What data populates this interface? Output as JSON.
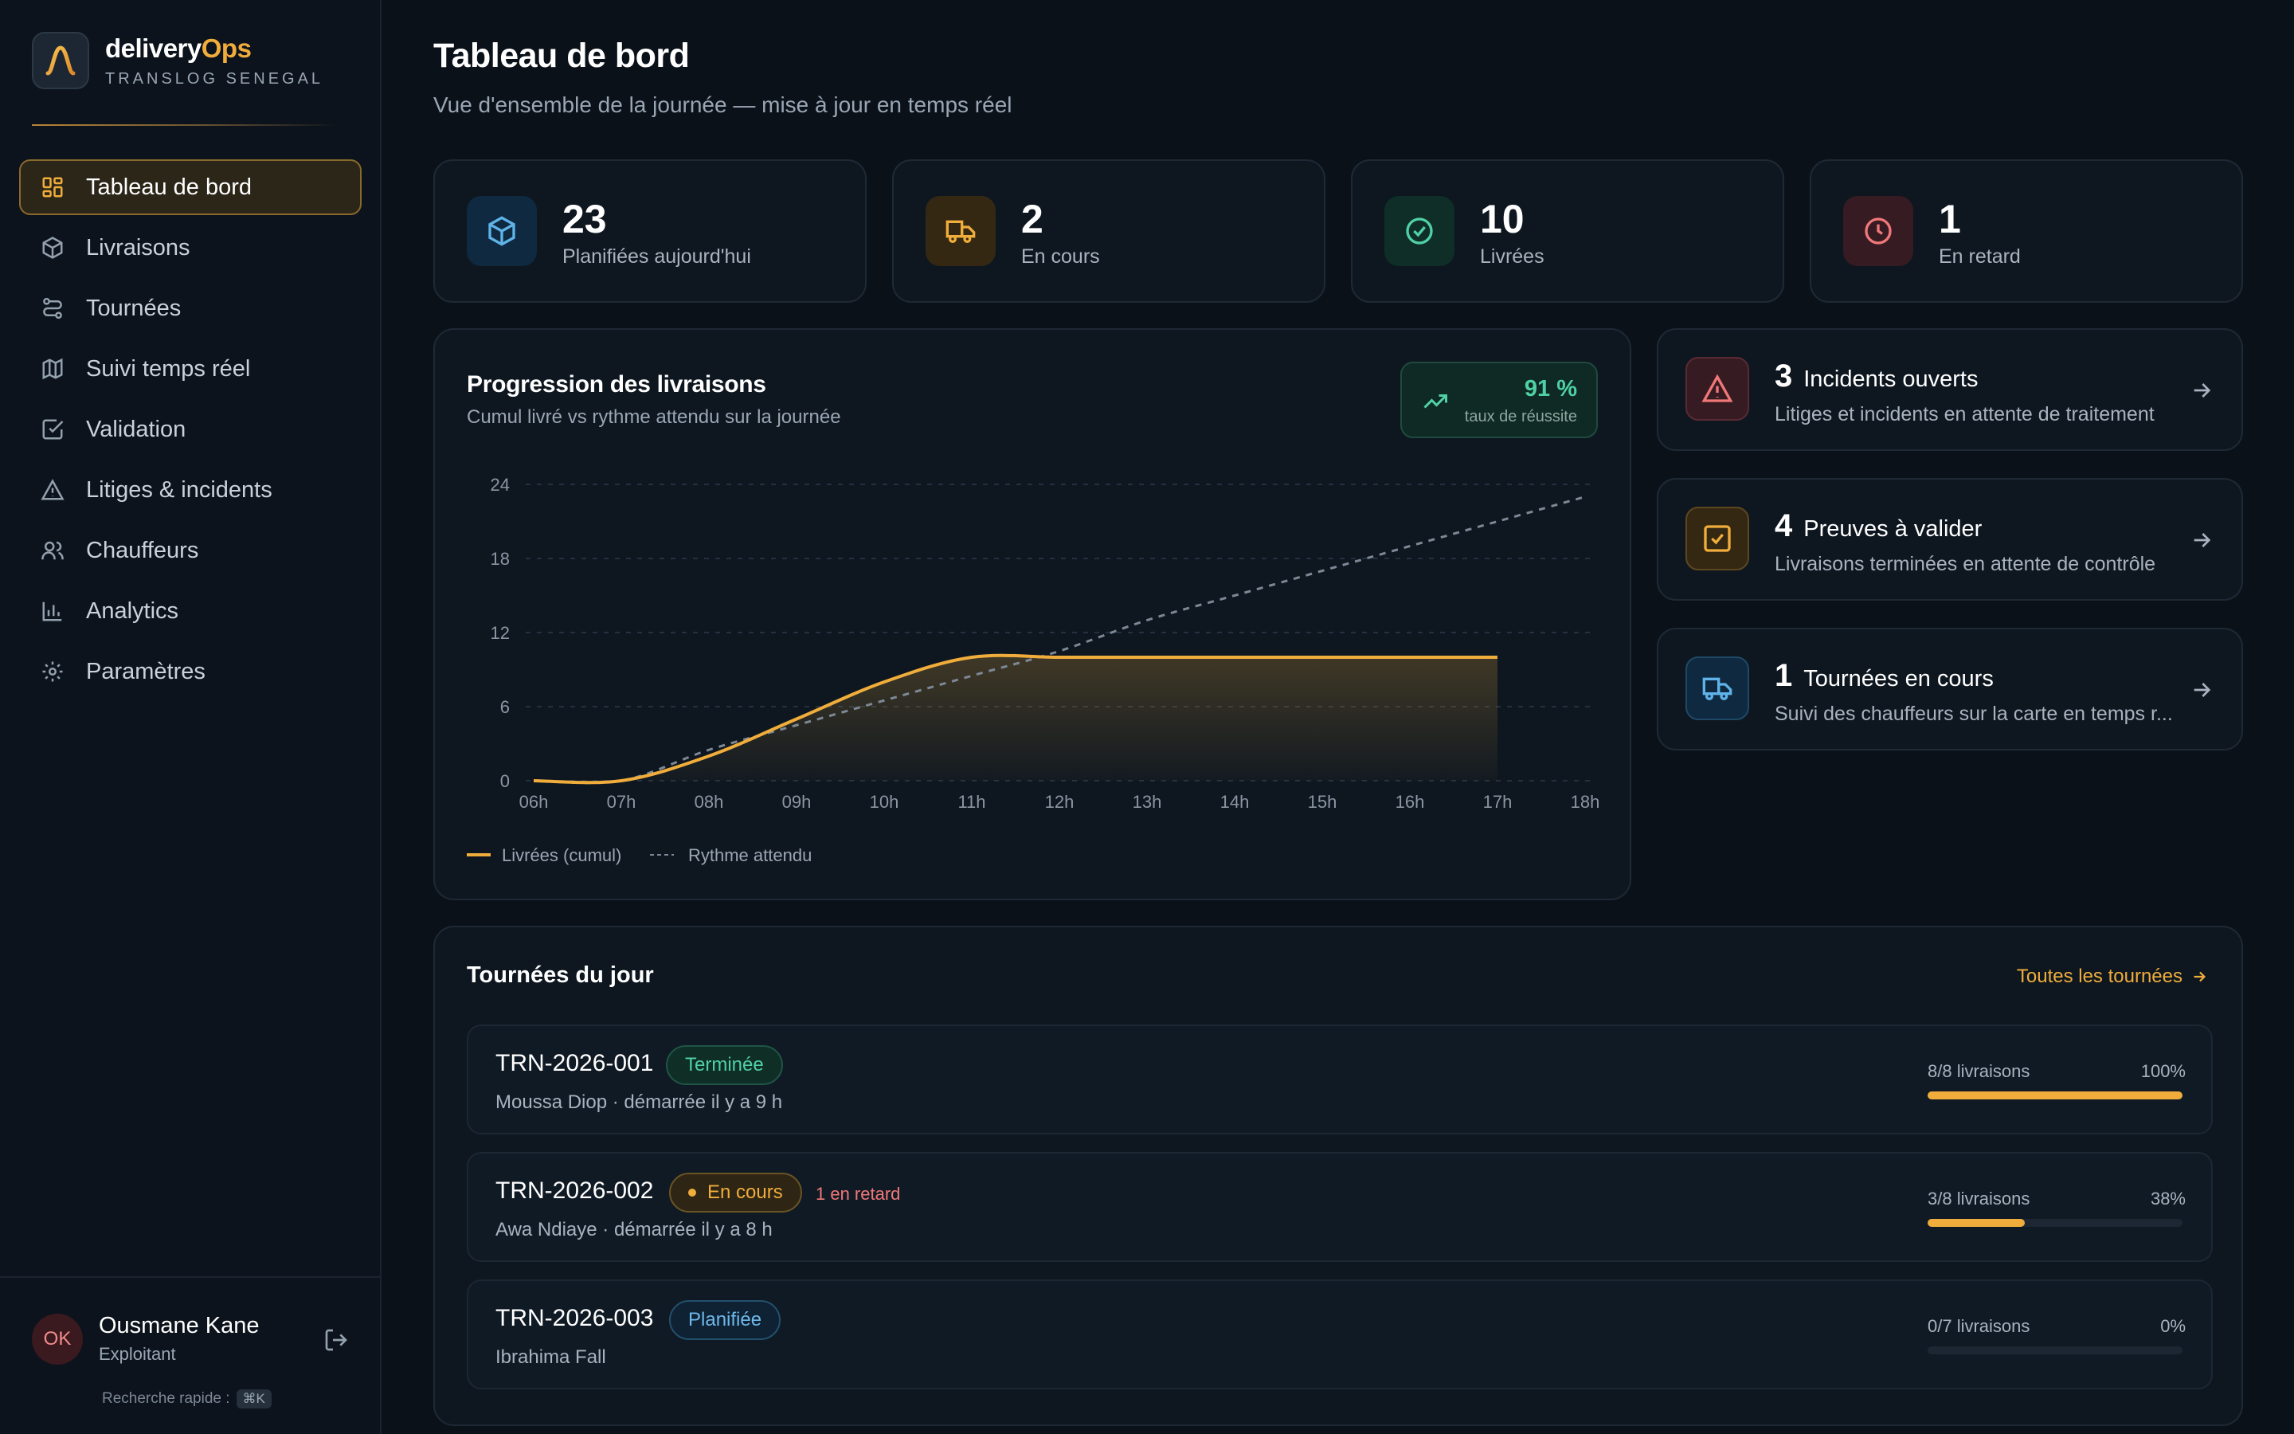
{
  "brand": {
    "name_part1": "delivery",
    "name_part2": "Ops",
    "subtitle": "TRANSLOG SENEGAL"
  },
  "nav": [
    {
      "label": "Tableau de bord",
      "icon": "dashboard-icon",
      "active": true
    },
    {
      "label": "Livraisons",
      "icon": "package-icon"
    },
    {
      "label": "Tournées",
      "icon": "route-icon"
    },
    {
      "label": "Suivi temps réel",
      "icon": "map-icon"
    },
    {
      "label": "Validation",
      "icon": "check-square-icon"
    },
    {
      "label": "Litiges & incidents",
      "icon": "warning-icon"
    },
    {
      "label": "Chauffeurs",
      "icon": "users-icon"
    },
    {
      "label": "Analytics",
      "icon": "bar-chart-icon"
    },
    {
      "label": "Paramètres",
      "icon": "gear-icon"
    }
  ],
  "user": {
    "initials": "OK",
    "name": "Ousmane Kane",
    "role": "Exploitant"
  },
  "quick_search": {
    "label": "Recherche rapide :",
    "shortcut": "⌘K"
  },
  "header": {
    "title": "Tableau de bord",
    "subtitle": "Vue d'ensemble de la journée — mise à jour en temps réel"
  },
  "kpis": [
    {
      "value": "23",
      "label": "Planifiées aujourd'hui",
      "icon": "package-icon",
      "color": "#5fb3e8"
    },
    {
      "value": "2",
      "label": "En cours",
      "icon": "truck-icon",
      "color": "#f0ad3b"
    },
    {
      "value": "10",
      "label": "Livrées",
      "icon": "check-circle-icon",
      "color": "#4fd1a5"
    },
    {
      "value": "1",
      "label": "En retard",
      "icon": "clock-icon",
      "color": "#f07878"
    }
  ],
  "chart": {
    "title": "Progression des livraisons",
    "subtitle": "Cumul livré vs rythme attendu sur la journée",
    "rate_value": "91 %",
    "rate_label": "taux de réussite",
    "legend_delivered": "Livrées (cumul)",
    "legend_expected": "Rythme attendu"
  },
  "chart_data": {
    "type": "line",
    "x": [
      "06h",
      "07h",
      "08h",
      "09h",
      "10h",
      "11h",
      "12h",
      "13h",
      "14h",
      "15h",
      "16h",
      "17h",
      "18h"
    ],
    "ylim": [
      0,
      24
    ],
    "yticks": [
      0,
      6,
      12,
      18,
      24
    ],
    "grid": true,
    "legend_position": "bottom-left",
    "series": [
      {
        "name": "Livrées (cumul)",
        "color": "#f0ad3b",
        "style": "solid-area",
        "values": [
          0,
          0,
          2,
          5,
          8,
          10,
          10,
          10,
          10,
          10,
          10,
          10,
          null
        ]
      },
      {
        "name": "Rythme attendu",
        "color": "#7d8896",
        "style": "dashed",
        "values": [
          0,
          0,
          2.5,
          4.5,
          6.5,
          8.5,
          10.5,
          13,
          15,
          17,
          19,
          21,
          23
        ]
      }
    ]
  },
  "actions": [
    {
      "count": "3",
      "title": "Incidents ouverts",
      "desc": "Litiges et incidents en attente de traitement",
      "icon": "warning-icon",
      "color": "#f07878"
    },
    {
      "count": "4",
      "title": "Preuves à valider",
      "desc": "Livraisons terminées en attente de contrôle",
      "icon": "check-square-icon",
      "color": "#f0ad3b"
    },
    {
      "count": "1",
      "title": "Tournées en cours",
      "desc": "Suivi des chauffeurs sur la carte en temps r...",
      "icon": "truck-icon",
      "color": "#5fb3e8"
    }
  ],
  "tours": {
    "title": "Tournées du jour",
    "link": "Toutes les tournées",
    "rows": [
      {
        "id": "TRN-2026-001",
        "status": "Terminée",
        "late": "",
        "meta": "Moussa Diop · démarrée il y a 9 h",
        "progress_label": "8/8 livraisons",
        "progress_pct": "100%",
        "progress": 1.0
      },
      {
        "id": "TRN-2026-002",
        "status": "En cours",
        "late": "1 en retard",
        "meta": "Awa Ndiaye · démarrée il y a 8 h",
        "progress_label": "3/8 livraisons",
        "progress_pct": "38%",
        "progress": 0.38
      },
      {
        "id": "TRN-2026-003",
        "status": "Planifiée",
        "late": "",
        "meta": "Ibrahima Fall",
        "progress_label": "0/7 livraisons",
        "progress_pct": "0%",
        "progress": 0.0
      }
    ]
  }
}
